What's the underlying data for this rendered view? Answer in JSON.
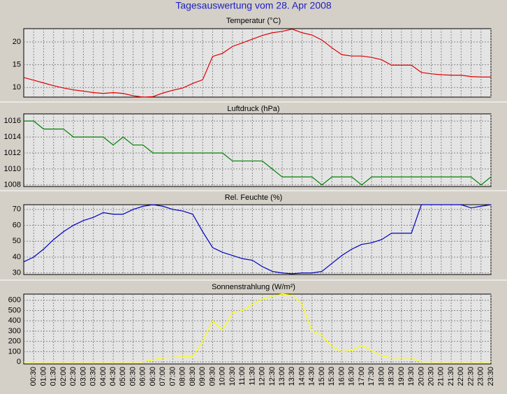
{
  "title": "Tagesauswertung vom 28. Apr 2008",
  "chart_data": [
    {
      "type": "line",
      "title": "Temperatur (°C)",
      "color": "#e00000",
      "grid": true,
      "ylim": [
        7.9,
        22.9
      ],
      "yticks": [
        10,
        15,
        20
      ],
      "values": [
        12.2,
        11.6,
        11.0,
        10.4,
        9.9,
        9.5,
        9.2,
        8.9,
        8.7,
        8.9,
        8.7,
        8.2,
        7.9,
        8.0,
        8.8,
        9.4,
        9.9,
        10.9,
        11.7,
        16.8,
        17.5,
        19.0,
        19.8,
        20.6,
        21.4,
        22.0,
        22.3,
        22.8,
        22.0,
        21.5,
        20.4,
        18.7,
        17.2,
        16.9,
        16.9,
        16.6,
        16.1,
        14.9,
        14.9,
        14.9,
        13.3,
        13.0,
        12.8,
        12.7,
        12.7,
        12.4,
        12.3,
        12.3
      ]
    },
    {
      "type": "line",
      "title": "Luftdruck (hPa)",
      "color": "#008000",
      "grid": true,
      "ylim": [
        1007.8,
        1016.9
      ],
      "yticks": [
        1008,
        1010,
        1012,
        1014,
        1016
      ],
      "values": [
        1016,
        1016,
        1015,
        1015,
        1015,
        1014,
        1014,
        1014,
        1014,
        1013,
        1014,
        1013,
        1013,
        1012,
        1012,
        1012,
        1012,
        1012,
        1012,
        1012,
        1012,
        1011,
        1011,
        1011,
        1011,
        1010,
        1009,
        1009,
        1009,
        1009,
        1008,
        1009,
        1009,
        1009,
        1008,
        1009,
        1009,
        1009,
        1009,
        1009,
        1009,
        1009,
        1009,
        1009,
        1009,
        1009,
        1008,
        1009
      ]
    },
    {
      "type": "line",
      "title": "Rel. Feuchte (%)",
      "color": "#0000c0",
      "grid": true,
      "ylim": [
        29,
        73
      ],
      "yticks": [
        30,
        40,
        50,
        60,
        70
      ],
      "values": [
        37,
        40,
        45,
        51,
        56,
        60,
        63,
        65,
        68,
        67,
        67,
        70,
        72,
        73,
        72,
        70,
        69,
        67,
        56,
        46,
        43,
        41,
        39,
        38,
        34,
        31,
        30,
        29.5,
        30,
        30,
        31,
        36,
        41,
        45,
        48,
        49,
        51,
        55,
        55,
        55,
        73,
        73,
        73,
        73,
        73,
        71,
        72,
        73
      ]
    },
    {
      "type": "line",
      "title": "Sonnenstrahlung (W/m²)",
      "color": "#ffff00",
      "grid": true,
      "ylim": [
        -20,
        660
      ],
      "yticks": [
        0,
        100,
        200,
        300,
        400,
        500,
        600
      ],
      "categories": [
        null,
        "00:30",
        "01:00",
        "01:30",
        "02:00",
        "02:30",
        "03:00",
        "03:30",
        "04:00",
        "04:30",
        "05:00",
        "05:30",
        "06:00",
        "06:30",
        "07:00",
        "07:30",
        "08:00",
        "08:30",
        "09:00",
        "09:30",
        "10:00",
        "10:30",
        "11:00",
        "11:30",
        "12:00",
        "12:30",
        "13:00",
        "13:30",
        "14:00",
        "14:30",
        "15:00",
        "15:30",
        "16:00",
        "16:30",
        "17:00",
        "17:30",
        "18:00",
        "18:30",
        "19:00",
        "19:30",
        "20:00",
        "20:30",
        "21:00",
        "21:30",
        "22:00",
        "22:30",
        "23:00",
        "23:30"
      ],
      "values": [
        0,
        0,
        0,
        0,
        0,
        0,
        0,
        0,
        0,
        0,
        0,
        0,
        0,
        20,
        40,
        45,
        50,
        50,
        200,
        400,
        310,
        480,
        500,
        560,
        610,
        640,
        660,
        650,
        560,
        300,
        260,
        150,
        100,
        110,
        160,
        110,
        60,
        40,
        40,
        40,
        0,
        0,
        0,
        0,
        0,
        0,
        0,
        0
      ]
    }
  ]
}
